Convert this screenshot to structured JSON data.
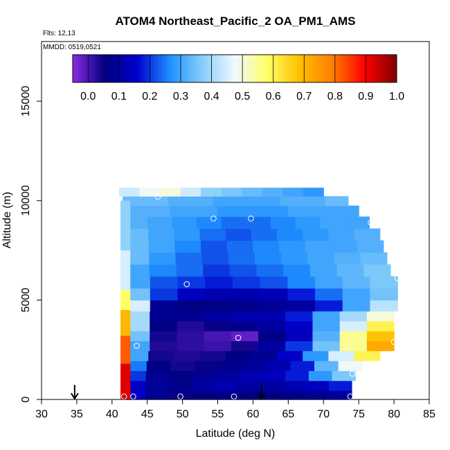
{
  "chart_data": {
    "type": "heatmap",
    "title": "ATOM4 Northeast_Pacific_2 OA_PM1_AMS",
    "flights_note": "Flts: 12,13",
    "dates_note": "MMDD: 0519,0521",
    "xlabel": "Latitude (deg N)",
    "ylabel": "Altitude (m)",
    "xlim": [
      30,
      85
    ],
    "ylim": [
      0,
      18000
    ],
    "xticks": [
      "30",
      "35",
      "40",
      "45",
      "50",
      "55",
      "60",
      "65",
      "70",
      "75",
      "80",
      "85"
    ],
    "yticks": [
      "0",
      "5000",
      "10000",
      "15000"
    ],
    "colorbar": {
      "min": -0.05,
      "max": 1.0,
      "ticks": [
        "0.0",
        "0.1",
        "0.2",
        "0.3",
        "0.4",
        "0.5",
        "0.6",
        "0.7",
        "0.8",
        "0.9",
        "1.0"
      ],
      "colors": [
        "#8a2be2",
        "#000080",
        "#0000cd",
        "#1e90ff",
        "#87cefa",
        "#f0f8ff",
        "#ffff66",
        "#ffc000",
        "#ff7f00",
        "#ff0000",
        "#800000"
      ]
    },
    "grid": false,
    "layers": [
      {
        "alt": 200,
        "lat_min": 41.5,
        "lat_max": 74.0,
        "values": [
          0.15,
          0.08,
          0.05,
          0.06,
          0.07,
          0.06,
          0.06,
          0.07,
          0.08,
          0.1
        ]
      },
      {
        "alt": 700,
        "lat_min": 41.5,
        "lat_max": 74.0,
        "values": [
          0.15,
          0.09,
          0.07,
          0.1,
          0.12,
          0.1,
          0.1,
          0.12,
          0.14,
          0.18
        ]
      },
      {
        "alt": 1200,
        "lat_min": 41.5,
        "lat_max": 74.5,
        "values": [
          0.2,
          0.08,
          0.06,
          0.08,
          0.1,
          0.12,
          0.14,
          0.18,
          0.28,
          0.36
        ]
      },
      {
        "alt": 1700,
        "lat_min": 41.5,
        "lat_max": 75.5,
        "values": [
          0.25,
          0.06,
          0.04,
          0.05,
          0.07,
          0.09,
          0.12,
          0.18,
          0.33,
          0.48
        ]
      },
      {
        "alt": 2200,
        "lat_min": 41.5,
        "lat_max": 78.0,
        "values": [
          0.3,
          0.04,
          0.03,
          0.04,
          0.06,
          0.08,
          0.15,
          0.28,
          0.45,
          0.6
        ]
      },
      {
        "alt": 2700,
        "lat_min": 41.5,
        "lat_max": 80.0,
        "values": [
          0.3,
          0.03,
          0.02,
          0.01,
          0.04,
          0.1,
          0.2,
          0.35,
          0.55,
          0.72
        ]
      },
      {
        "alt": 3200,
        "lat_min": 41.5,
        "lat_max": 80.0,
        "values": [
          0.35,
          0.04,
          0.02,
          0.0,
          -0.02,
          0.06,
          0.14,
          0.32,
          0.55,
          0.68
        ]
      },
      {
        "alt": 3700,
        "lat_min": 41.5,
        "lat_max": 80.0,
        "values": [
          0.4,
          0.06,
          0.03,
          0.05,
          0.07,
          0.1,
          0.15,
          0.3,
          0.45,
          0.6
        ]
      },
      {
        "alt": 4200,
        "lat_min": 41.5,
        "lat_max": 80.0,
        "values": [
          0.4,
          0.08,
          0.08,
          0.1,
          0.12,
          0.12,
          0.18,
          0.3,
          0.4,
          0.5
        ]
      },
      {
        "alt": 4700,
        "lat_min": 41.5,
        "lat_max": 80.5,
        "values": [
          0.45,
          0.08,
          0.06,
          0.06,
          0.07,
          0.08,
          0.1,
          0.18,
          0.3,
          0.42
        ]
      },
      {
        "alt": 5300,
        "lat_min": 41.5,
        "lat_max": 80.5,
        "values": [
          0.35,
          0.2,
          0.14,
          0.12,
          0.12,
          0.13,
          0.18,
          0.24,
          0.3,
          0.35
        ]
      },
      {
        "alt": 5900,
        "lat_min": 41.5,
        "lat_max": 80.5,
        "values": [
          0.3,
          0.22,
          0.2,
          0.18,
          0.2,
          0.22,
          0.26,
          0.3,
          0.33,
          0.36
        ]
      },
      {
        "alt": 6500,
        "lat_min": 41.5,
        "lat_max": 79.5,
        "values": [
          0.3,
          0.26,
          0.24,
          0.2,
          0.22,
          0.24,
          0.26,
          0.3,
          0.33,
          0.36
        ]
      },
      {
        "alt": 7100,
        "lat_min": 41.5,
        "lat_max": 79.0,
        "values": [
          0.34,
          0.28,
          0.24,
          0.22,
          0.24,
          0.26,
          0.28,
          0.3,
          0.32,
          0.34
        ]
      },
      {
        "alt": 7700,
        "lat_min": 41.5,
        "lat_max": 78.5,
        "values": [
          0.34,
          0.3,
          0.26,
          0.22,
          0.24,
          0.26,
          0.28,
          0.3,
          0.3,
          0.32
        ]
      },
      {
        "alt": 8300,
        "lat_min": 41.5,
        "lat_max": 78.0,
        "values": [
          0.34,
          0.3,
          0.28,
          0.24,
          0.22,
          0.24,
          0.26,
          0.28,
          0.3,
          0.32
        ]
      },
      {
        "alt": 8900,
        "lat_min": 41.5,
        "lat_max": 76.5,
        "values": [
          0.32,
          0.3,
          0.28,
          0.26,
          0.24,
          0.24,
          0.26,
          0.28,
          0.3,
          0.3
        ]
      },
      {
        "alt": 9500,
        "lat_min": 41.5,
        "lat_max": 75.0,
        "values": [
          0.32,
          0.32,
          0.3,
          0.3,
          0.28,
          0.28,
          0.28,
          0.3,
          0.3,
          0.3
        ]
      },
      {
        "alt": 10000,
        "lat_min": 41.5,
        "lat_max": 73.5,
        "values": [
          0.34,
          0.34,
          0.32,
          0.32,
          0.3,
          0.3,
          0.3,
          0.32,
          0.32,
          0.34
        ]
      },
      {
        "alt": 10450,
        "lat_min": 41.0,
        "lat_max": 70.0,
        "values": [
          0.44,
          0.48,
          0.5,
          0.44,
          0.38,
          0.36,
          0.34,
          0.32,
          0.3,
          0.28
        ]
      }
    ],
    "edge_strip": [
      {
        "alt_min": 0,
        "alt_max": 1800,
        "value": 0.92
      },
      {
        "alt_min": 1800,
        "alt_max": 3200,
        "value": 0.82
      },
      {
        "alt_min": 3200,
        "alt_max": 4500,
        "value": 0.7
      },
      {
        "alt_min": 4500,
        "alt_max": 5500,
        "value": 0.58
      },
      {
        "alt_min": 5500,
        "alt_max": 7500,
        "value": 0.45
      },
      {
        "alt_min": 7500,
        "alt_max": 10000,
        "value": 0.38
      }
    ],
    "sample_points": [
      {
        "lat": 41.7,
        "alt": 150
      },
      {
        "lat": 43.0,
        "alt": 150
      },
      {
        "lat": 49.7,
        "alt": 150
      },
      {
        "lat": 57.3,
        "alt": 150
      },
      {
        "lat": 73.8,
        "alt": 150
      },
      {
        "lat": 43.5,
        "alt": 2700
      },
      {
        "lat": 57.9,
        "alt": 3100
      },
      {
        "lat": 80.0,
        "alt": 2900
      },
      {
        "lat": 74.1,
        "alt": 1300
      },
      {
        "lat": 50.6,
        "alt": 5800
      },
      {
        "lat": 54.4,
        "alt": 9100
      },
      {
        "lat": 59.7,
        "alt": 9100
      },
      {
        "lat": 69.7,
        "alt": 10800
      },
      {
        "lat": 76.7,
        "alt": 8900
      },
      {
        "lat": 80.5,
        "alt": 6100
      },
      {
        "lat": 46.5,
        "alt": 10200
      }
    ],
    "arrows": [
      {
        "lat": 34.7
      },
      {
        "lat": 61.2
      }
    ]
  }
}
